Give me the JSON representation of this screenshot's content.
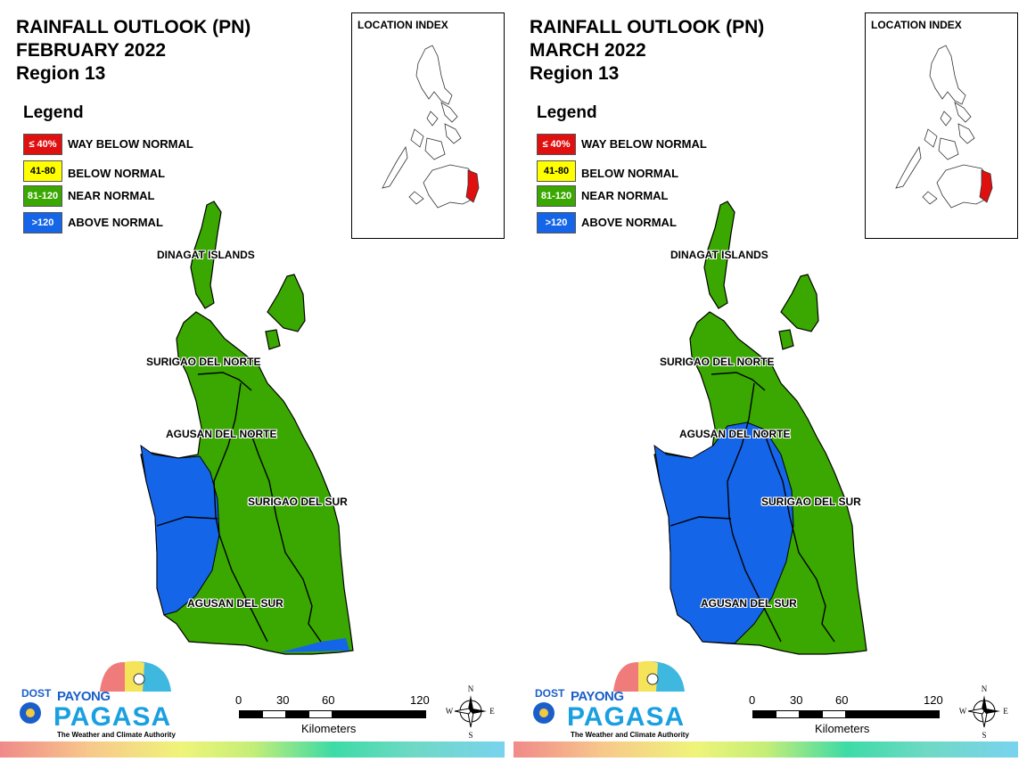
{
  "panels": [
    {
      "title_line1": "RAINFALL OUTLOOK (PN)",
      "title_line2": "FEBRUARY 2022",
      "title_line3": "Region 13",
      "scenario": "february"
    },
    {
      "title_line1": "RAINFALL OUTLOOK (PN)",
      "title_line2": "MARCH 2022",
      "title_line3": "Region 13",
      "scenario": "march"
    }
  ],
  "legend": {
    "title": "Legend",
    "items": [
      {
        "code": "≤ 40%",
        "label": "WAY BELOW NORMAL",
        "color": "#e01010",
        "text_color": "#ffffff"
      },
      {
        "code": "41-80",
        "label": "BELOW NORMAL",
        "color": "#ffff00",
        "text_color": "#000000"
      },
      {
        "code": "81-120",
        "label": "NEAR NORMAL",
        "color": "#3aa800",
        "text_color": "#ffffff"
      },
      {
        "code": ">120",
        "label": "ABOVE NORMAL",
        "color": "#1565e8",
        "text_color": "#ffffff"
      }
    ]
  },
  "location_index": {
    "title": "LOCATION INDEX",
    "highlight_color": "#e01010"
  },
  "regions": {
    "dinagat": "DINAGAT ISLANDS",
    "surigao_norte": "SURIGAO DEL NORTE",
    "agusan_norte": "AGUSAN DEL NORTE",
    "surigao_sur": "SURIGAO DEL SUR",
    "agusan_sur": "AGUSAN DEL SUR"
  },
  "scalebar": {
    "ticks": [
      "0",
      "30",
      "60",
      "120"
    ],
    "unit": "Kilometers"
  },
  "compass": {
    "n": "N",
    "s": "S",
    "e": "E",
    "w": "W"
  },
  "logo": {
    "dost": "DOST",
    "payong": "PAYONG",
    "pagasa": "PAGASA",
    "tagline": "The Weather and Climate Authority"
  },
  "colors": {
    "near_normal": "#3aa800",
    "above_normal": "#1565e8"
  }
}
